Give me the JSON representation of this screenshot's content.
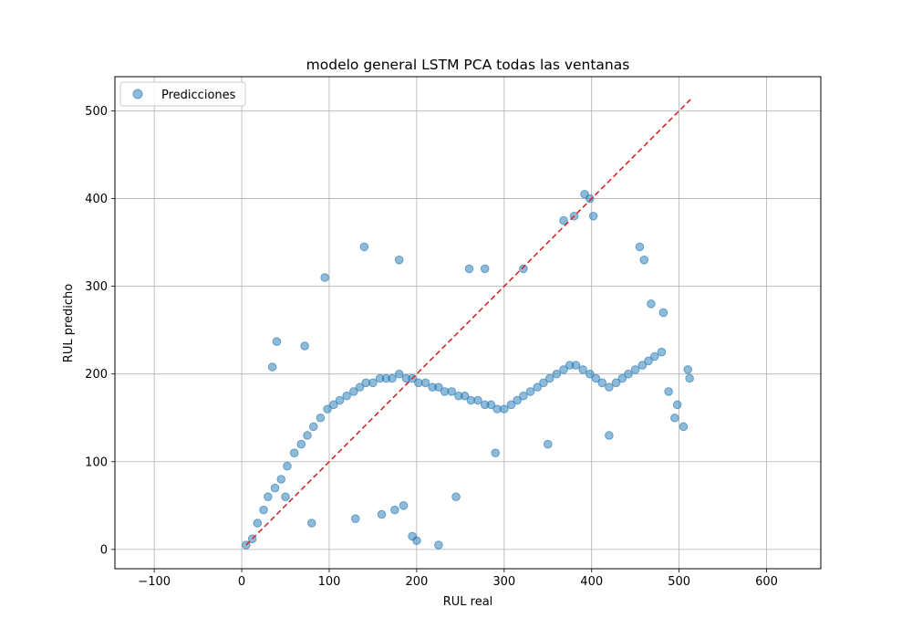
{
  "chart_data": {
    "type": "scatter",
    "title": "modelo general LSTM PCA todas las ventanas",
    "xlabel": "RUL real",
    "ylabel": "RUL predicho",
    "xlim": [
      -145,
      662
    ],
    "ylim": [
      -22,
      539
    ],
    "xticks": [
      -100,
      0,
      100,
      200,
      300,
      400,
      500,
      600
    ],
    "xtick_labels": [
      "−100",
      "0",
      "100",
      "200",
      "300",
      "400",
      "500",
      "600"
    ],
    "yticks": [
      0,
      100,
      200,
      300,
      400,
      500
    ],
    "ytick_labels": [
      "0",
      "100",
      "200",
      "300",
      "400",
      "500"
    ],
    "grid": true,
    "legend": {
      "placement": "top-left",
      "entries": [
        "Predicciones"
      ]
    },
    "colors": {
      "points": "#1f77b4",
      "reference_line": "#d62728"
    },
    "reference_line": {
      "style": "dashed",
      "x": [
        5,
        513
      ],
      "y": [
        5,
        513
      ]
    },
    "series": [
      {
        "name": "Predicciones",
        "point_alpha": 0.5,
        "x": [
          5,
          12,
          18,
          25,
          30,
          38,
          45,
          52,
          60,
          68,
          75,
          82,
          90,
          98,
          105,
          112,
          120,
          128,
          135,
          142,
          150,
          158,
          165,
          172,
          180,
          188,
          195,
          202,
          210,
          218,
          225,
          232,
          240,
          248,
          255,
          262,
          270,
          278,
          285,
          292,
          300,
          308,
          315,
          322,
          330,
          338,
          345,
          352,
          360,
          368,
          375,
          382,
          390,
          398,
          405,
          412,
          420,
          428,
          435,
          442,
          450,
          458,
          465,
          472,
          480,
          488,
          495,
          505,
          512,
          40,
          35,
          72,
          95,
          140,
          180,
          195,
          225,
          260,
          278,
          322,
          368,
          380,
          392,
          398,
          402,
          455,
          460,
          468,
          482,
          498,
          510,
          50,
          80,
          130,
          160,
          175,
          185,
          200,
          245,
          290,
          350,
          420
        ],
        "y": [
          5,
          12,
          30,
          45,
          60,
          70,
          80,
          95,
          110,
          120,
          130,
          140,
          150,
          160,
          165,
          170,
          175,
          180,
          185,
          190,
          190,
          195,
          195,
          195,
          200,
          195,
          195,
          190,
          190,
          185,
          185,
          180,
          180,
          175,
          175,
          170,
          170,
          165,
          165,
          160,
          160,
          165,
          170,
          175,
          180,
          185,
          190,
          195,
          200,
          205,
          210,
          210,
          205,
          200,
          195,
          190,
          185,
          190,
          195,
          200,
          205,
          210,
          215,
          220,
          225,
          180,
          150,
          140,
          195,
          237,
          208,
          232,
          310,
          345,
          330,
          15,
          5,
          320,
          320,
          320,
          375,
          380,
          405,
          400,
          380,
          345,
          330,
          280,
          270,
          165,
          205,
          60,
          30,
          35,
          40,
          45,
          50,
          10,
          60,
          110,
          120,
          130
        ]
      }
    ]
  }
}
